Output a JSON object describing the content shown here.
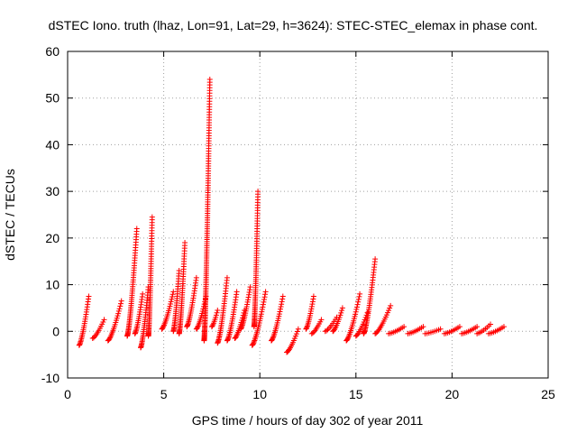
{
  "chart_data": {
    "type": "scatter",
    "title": "dSTEC Iono. truth (lhaz, Lon=91, Lat=29, h=3624): STEC-STEC_elemax in phase cont.",
    "xlabel": "GPS time / hours of day 302 of year 2011",
    "ylabel": "dSTEC  / TECUs",
    "xlim": [
      0,
      25
    ],
    "ylim": [
      -10,
      60
    ],
    "xticks": [
      0,
      5,
      10,
      15,
      20,
      25
    ],
    "yticks": [
      -10,
      0,
      10,
      20,
      30,
      40,
      50,
      60
    ],
    "xtick_labels": [
      "0",
      "5",
      "10",
      "15",
      "20",
      "25"
    ],
    "ytick_labels": [
      "-10",
      "0",
      "10",
      "20",
      "30",
      "40",
      "50",
      "60"
    ],
    "grid": true,
    "marker": "plus",
    "marker_color": "#ff0000",
    "arcs": [
      {
        "x0": 0.6,
        "x1": 1.1,
        "y0": -3.0,
        "y1": 7.5
      },
      {
        "x0": 1.3,
        "x1": 1.9,
        "y0": -1.5,
        "y1": 2.5
      },
      {
        "x0": 2.1,
        "x1": 2.8,
        "y0": -2.0,
        "y1": 6.5
      },
      {
        "x0": 3.1,
        "x1": 3.6,
        "y0": -1.0,
        "y1": 22.0
      },
      {
        "x0": 3.5,
        "x1": 3.9,
        "y0": -0.5,
        "y1": 8.0
      },
      {
        "x0": 3.8,
        "x1": 4.2,
        "y0": -3.5,
        "y1": 9.5
      },
      {
        "x0": 4.2,
        "x1": 4.4,
        "y0": -1.0,
        "y1": 24.5
      },
      {
        "x0": 4.9,
        "x1": 5.5,
        "y0": 0.5,
        "y1": 8.5
      },
      {
        "x0": 5.5,
        "x1": 5.8,
        "y0": 0.0,
        "y1": 13.0
      },
      {
        "x0": 5.8,
        "x1": 6.1,
        "y0": -0.5,
        "y1": 19.0
      },
      {
        "x0": 6.2,
        "x1": 6.7,
        "y0": 1.0,
        "y1": 11.5
      },
      {
        "x0": 6.7,
        "x1": 7.2,
        "y0": 0.5,
        "y1": 7.5
      },
      {
        "x0": 7.1,
        "x1": 7.4,
        "y0": -2.0,
        "y1": 54.0
      },
      {
        "x0": 7.5,
        "x1": 7.8,
        "y0": 1.0,
        "y1": 4.5
      },
      {
        "x0": 7.8,
        "x1": 8.3,
        "y0": -2.5,
        "y1": 11.5
      },
      {
        "x0": 8.3,
        "x1": 8.8,
        "y0": -2.0,
        "y1": 8.5
      },
      {
        "x0": 8.7,
        "x1": 9.2,
        "y0": -1.5,
        "y1": 4.5
      },
      {
        "x0": 9.0,
        "x1": 9.5,
        "y0": 0.5,
        "y1": 9.5
      },
      {
        "x0": 9.7,
        "x1": 9.9,
        "y0": 1.0,
        "y1": 30.0
      },
      {
        "x0": 9.6,
        "x1": 10.3,
        "y0": -3.0,
        "y1": 8.5
      },
      {
        "x0": 10.6,
        "x1": 11.2,
        "y0": -2.0,
        "y1": 7.5
      },
      {
        "x0": 11.4,
        "x1": 12.0,
        "y0": -4.5,
        "y1": 0.5
      },
      {
        "x0": 12.4,
        "x1": 12.8,
        "y0": 0.5,
        "y1": 7.5
      },
      {
        "x0": 12.7,
        "x1": 13.2,
        "y0": -0.5,
        "y1": 2.5
      },
      {
        "x0": 13.4,
        "x1": 14.0,
        "y0": 0.0,
        "y1": 3.0
      },
      {
        "x0": 13.8,
        "x1": 14.3,
        "y0": 0.0,
        "y1": 5.0
      },
      {
        "x0": 14.5,
        "x1": 15.2,
        "y0": -2.0,
        "y1": 8.0
      },
      {
        "x0": 15.0,
        "x1": 15.6,
        "y0": -1.0,
        "y1": 4.0
      },
      {
        "x0": 15.4,
        "x1": 16.0,
        "y0": -0.5,
        "y1": 15.5
      },
      {
        "x0": 16.0,
        "x1": 16.8,
        "y0": -0.5,
        "y1": 5.5
      },
      {
        "x0": 16.7,
        "x1": 17.5,
        "y0": -0.5,
        "y1": 1.0
      },
      {
        "x0": 17.7,
        "x1": 18.5,
        "y0": -0.5,
        "y1": 1.0
      },
      {
        "x0": 18.6,
        "x1": 19.4,
        "y0": -0.5,
        "y1": 0.5
      },
      {
        "x0": 19.6,
        "x1": 20.4,
        "y0": -0.5,
        "y1": 1.0
      },
      {
        "x0": 20.5,
        "x1": 21.3,
        "y0": -0.5,
        "y1": 1.0
      },
      {
        "x0": 21.3,
        "x1": 22.0,
        "y0": -0.5,
        "y1": 1.5
      },
      {
        "x0": 21.9,
        "x1": 22.7,
        "y0": -0.5,
        "y1": 1.0
      }
    ]
  }
}
